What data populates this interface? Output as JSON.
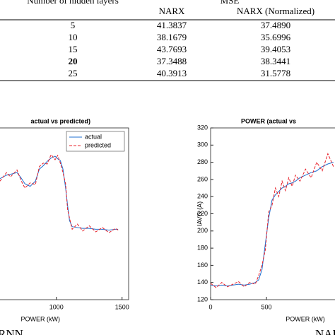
{
  "table": {
    "header": "Number of hidden layers",
    "group": "MSE",
    "columns": [
      "NARX",
      "NARX (Normalized)"
    ],
    "bold_row": 3,
    "rows": [
      [
        "5",
        "41.3837",
        "37.4890"
      ],
      [
        "10",
        "38.1679",
        "35.6996"
      ],
      [
        "15",
        "43.7693",
        "39.4053"
      ],
      [
        "20",
        "37.3488",
        "38.3441"
      ],
      [
        "25",
        "40.3913",
        "31.5778"
      ]
    ]
  },
  "chart_data": [
    {
      "type": "line",
      "title": "actual vs predicted)",
      "xlabel": "POWER (kW)",
      "caption": "RNN",
      "legend": "northeast",
      "xlim": [
        0,
        1550
      ],
      "ylim": [
        120,
        320
      ],
      "xticks": [
        1000,
        1500
      ],
      "x": [
        570,
        620,
        650,
        700,
        730,
        760,
        800,
        840,
        870,
        900,
        930,
        960,
        990,
        1010,
        1030,
        1050,
        1070,
        1085,
        1100,
        1120,
        1160,
        1200,
        1250,
        1300,
        1350,
        1400,
        1450,
        1470
      ],
      "series": [
        {
          "name": "actual",
          "color": "#1f6fd0",
          "values": [
            261,
            265,
            266,
            268,
            262,
            255,
            252,
            258,
            272,
            276,
            281,
            285,
            287,
            284,
            282,
            272,
            250,
            230,
            212,
            205,
            204,
            203,
            203,
            202,
            202,
            201,
            202,
            202
          ]
        },
        {
          "name": "predicted",
          "color": "#e8202a",
          "values": [
            258,
            268,
            263,
            271,
            259,
            250,
            256,
            254,
            275,
            279,
            278,
            289,
            283,
            288,
            279,
            268,
            255,
            225,
            215,
            202,
            208,
            200,
            206,
            199,
            204,
            198,
            203,
            201
          ]
        }
      ]
    },
    {
      "type": "line",
      "title": "POWER (actual vs",
      "xlabel": "POWER (kW)",
      "ylabel": "IAVG (A)",
      "caption": "NARX",
      "legend": null,
      "xlim": [
        0,
        1500
      ],
      "ylim": [
        120,
        320
      ],
      "xticks": [
        0,
        500
      ],
      "yticks": [
        120,
        140,
        160,
        180,
        200,
        220,
        240,
        260,
        280,
        300,
        320
      ],
      "x": [
        0,
        50,
        100,
        150,
        200,
        250,
        300,
        350,
        400,
        430,
        460,
        490,
        520,
        550,
        580,
        610,
        640,
        670,
        700,
        730,
        760,
        800,
        850,
        900,
        950,
        1000,
        1050,
        1100
      ],
      "series": [
        {
          "color": "#1f6fd0",
          "values": [
            137,
            136,
            137,
            136,
            137,
            138,
            137,
            138,
            140,
            143,
            155,
            185,
            215,
            236,
            242,
            246,
            250,
            252,
            255,
            256,
            258,
            262,
            265,
            268,
            270,
            275,
            278,
            280
          ]
        },
        {
          "color": "#e8202a",
          "values": [
            139,
            134,
            140,
            135,
            138,
            141,
            135,
            140,
            138,
            148,
            160,
            178,
            222,
            230,
            250,
            240,
            258,
            247,
            262,
            252,
            265,
            258,
            272,
            262,
            280,
            270,
            290,
            275
          ]
        }
      ]
    }
  ]
}
